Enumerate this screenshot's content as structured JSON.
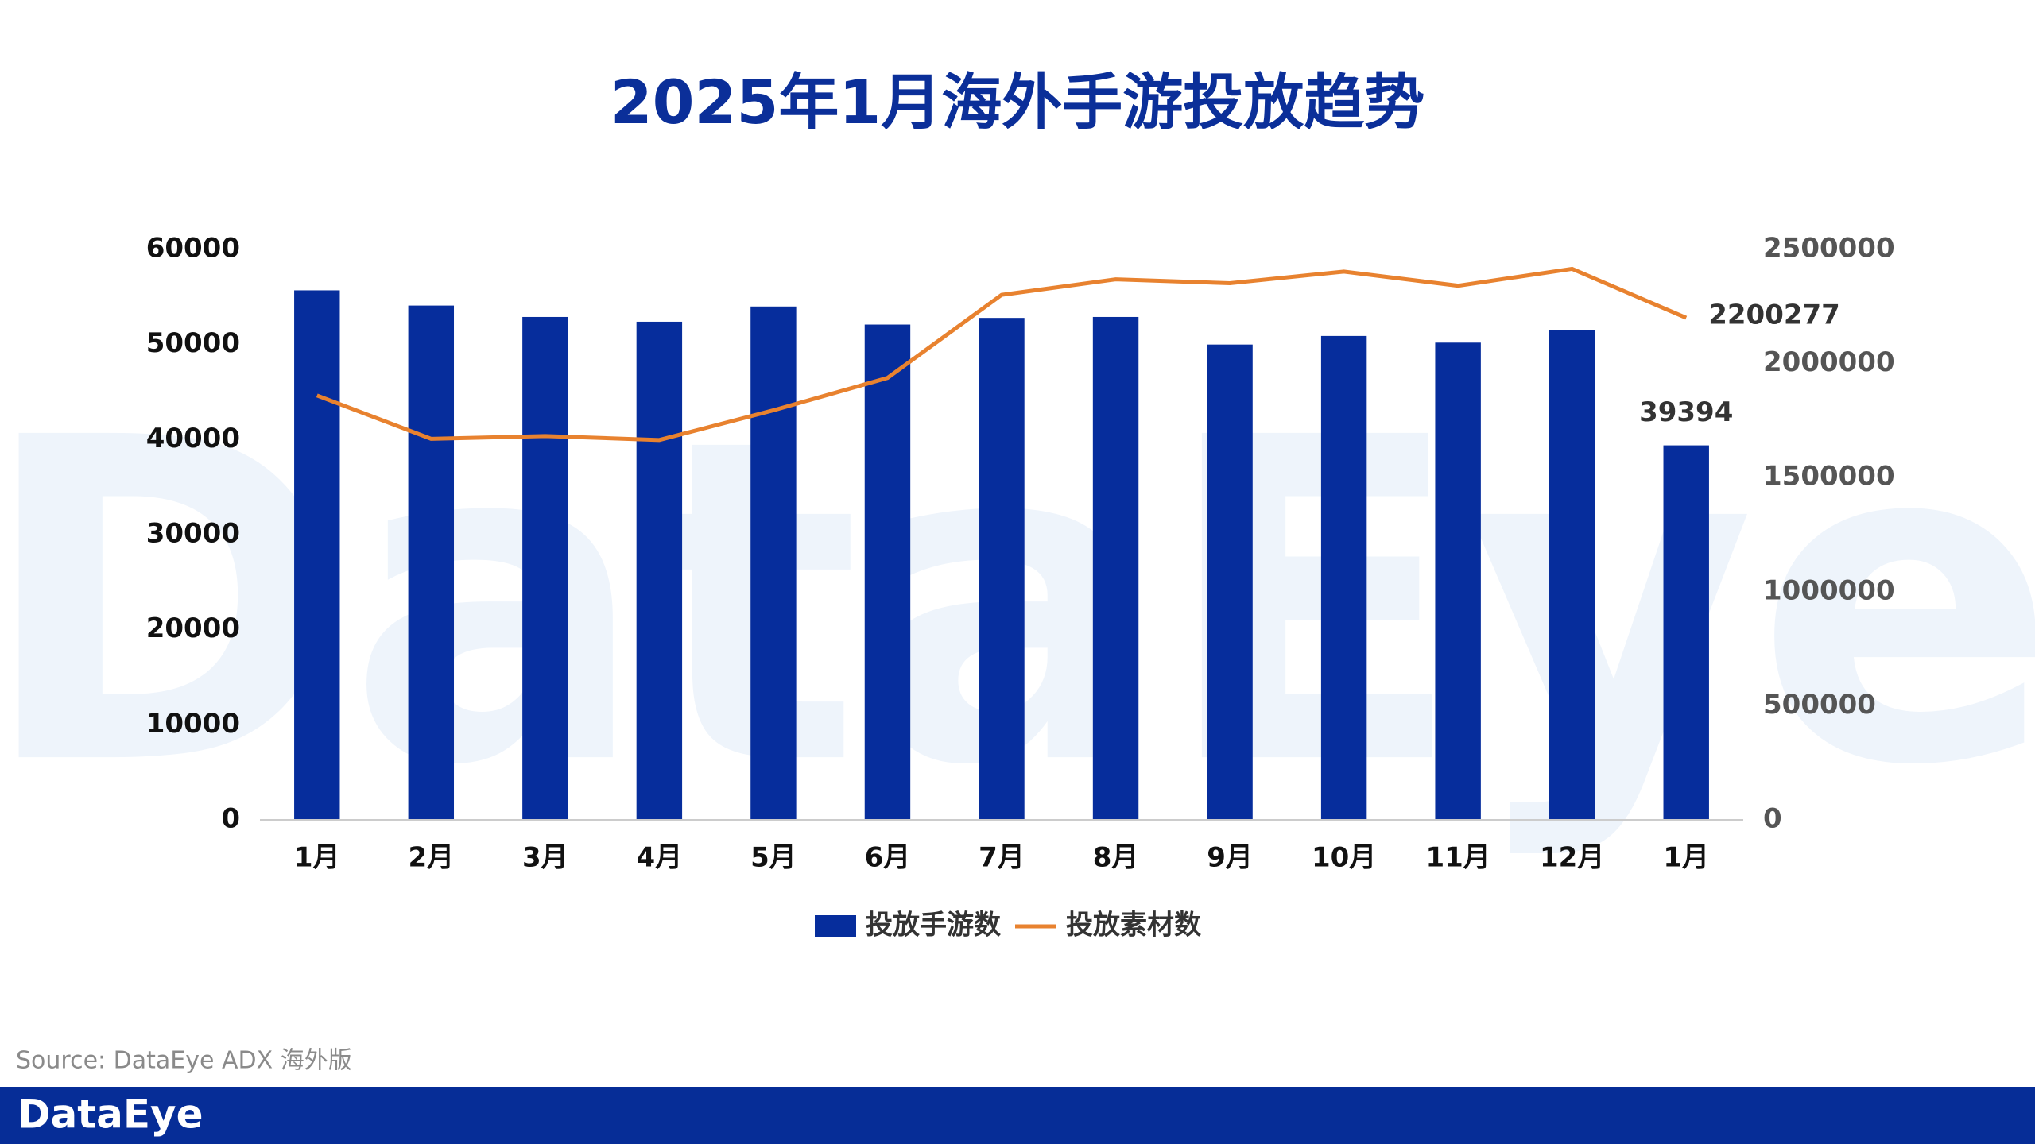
{
  "chart_data": {
    "type": "bar-line",
    "title": "2025年1月海外手游投放趋势",
    "categories": [
      "1月",
      "2月",
      "3月",
      "4月",
      "5月",
      "6月",
      "7月",
      "8月",
      "9月",
      "10月",
      "11月",
      "12月",
      "1月"
    ],
    "series": [
      {
        "name": "投放手游数",
        "type": "bar",
        "axis": "y",
        "color": "#062d9c",
        "values": [
          55700,
          54100,
          52900,
          52400,
          54000,
          52100,
          52800,
          52900,
          50000,
          50900,
          50200,
          51500,
          39394
        ]
      },
      {
        "name": "投放素材数",
        "type": "line",
        "axis": "y2",
        "color": "#e8822f",
        "values": [
          1860000,
          1670000,
          1682000,
          1665000,
          1795000,
          1937000,
          2301000,
          2369000,
          2352000,
          2403000,
          2341000,
          2415000,
          2200277
        ]
      }
    ],
    "ylim": [
      0,
      60000
    ],
    "yticks": [
      0,
      10000,
      20000,
      30000,
      40000,
      50000,
      60000
    ],
    "y2lim": [
      0,
      2500000
    ],
    "y2ticks": [
      0,
      500000,
      1000000,
      1500000,
      2000000,
      2500000
    ],
    "grid": false,
    "legend": "bottom",
    "source": "Source: DataEye ADX 海外版",
    "watermark": "DataEye",
    "brand": "DataEye"
  }
}
